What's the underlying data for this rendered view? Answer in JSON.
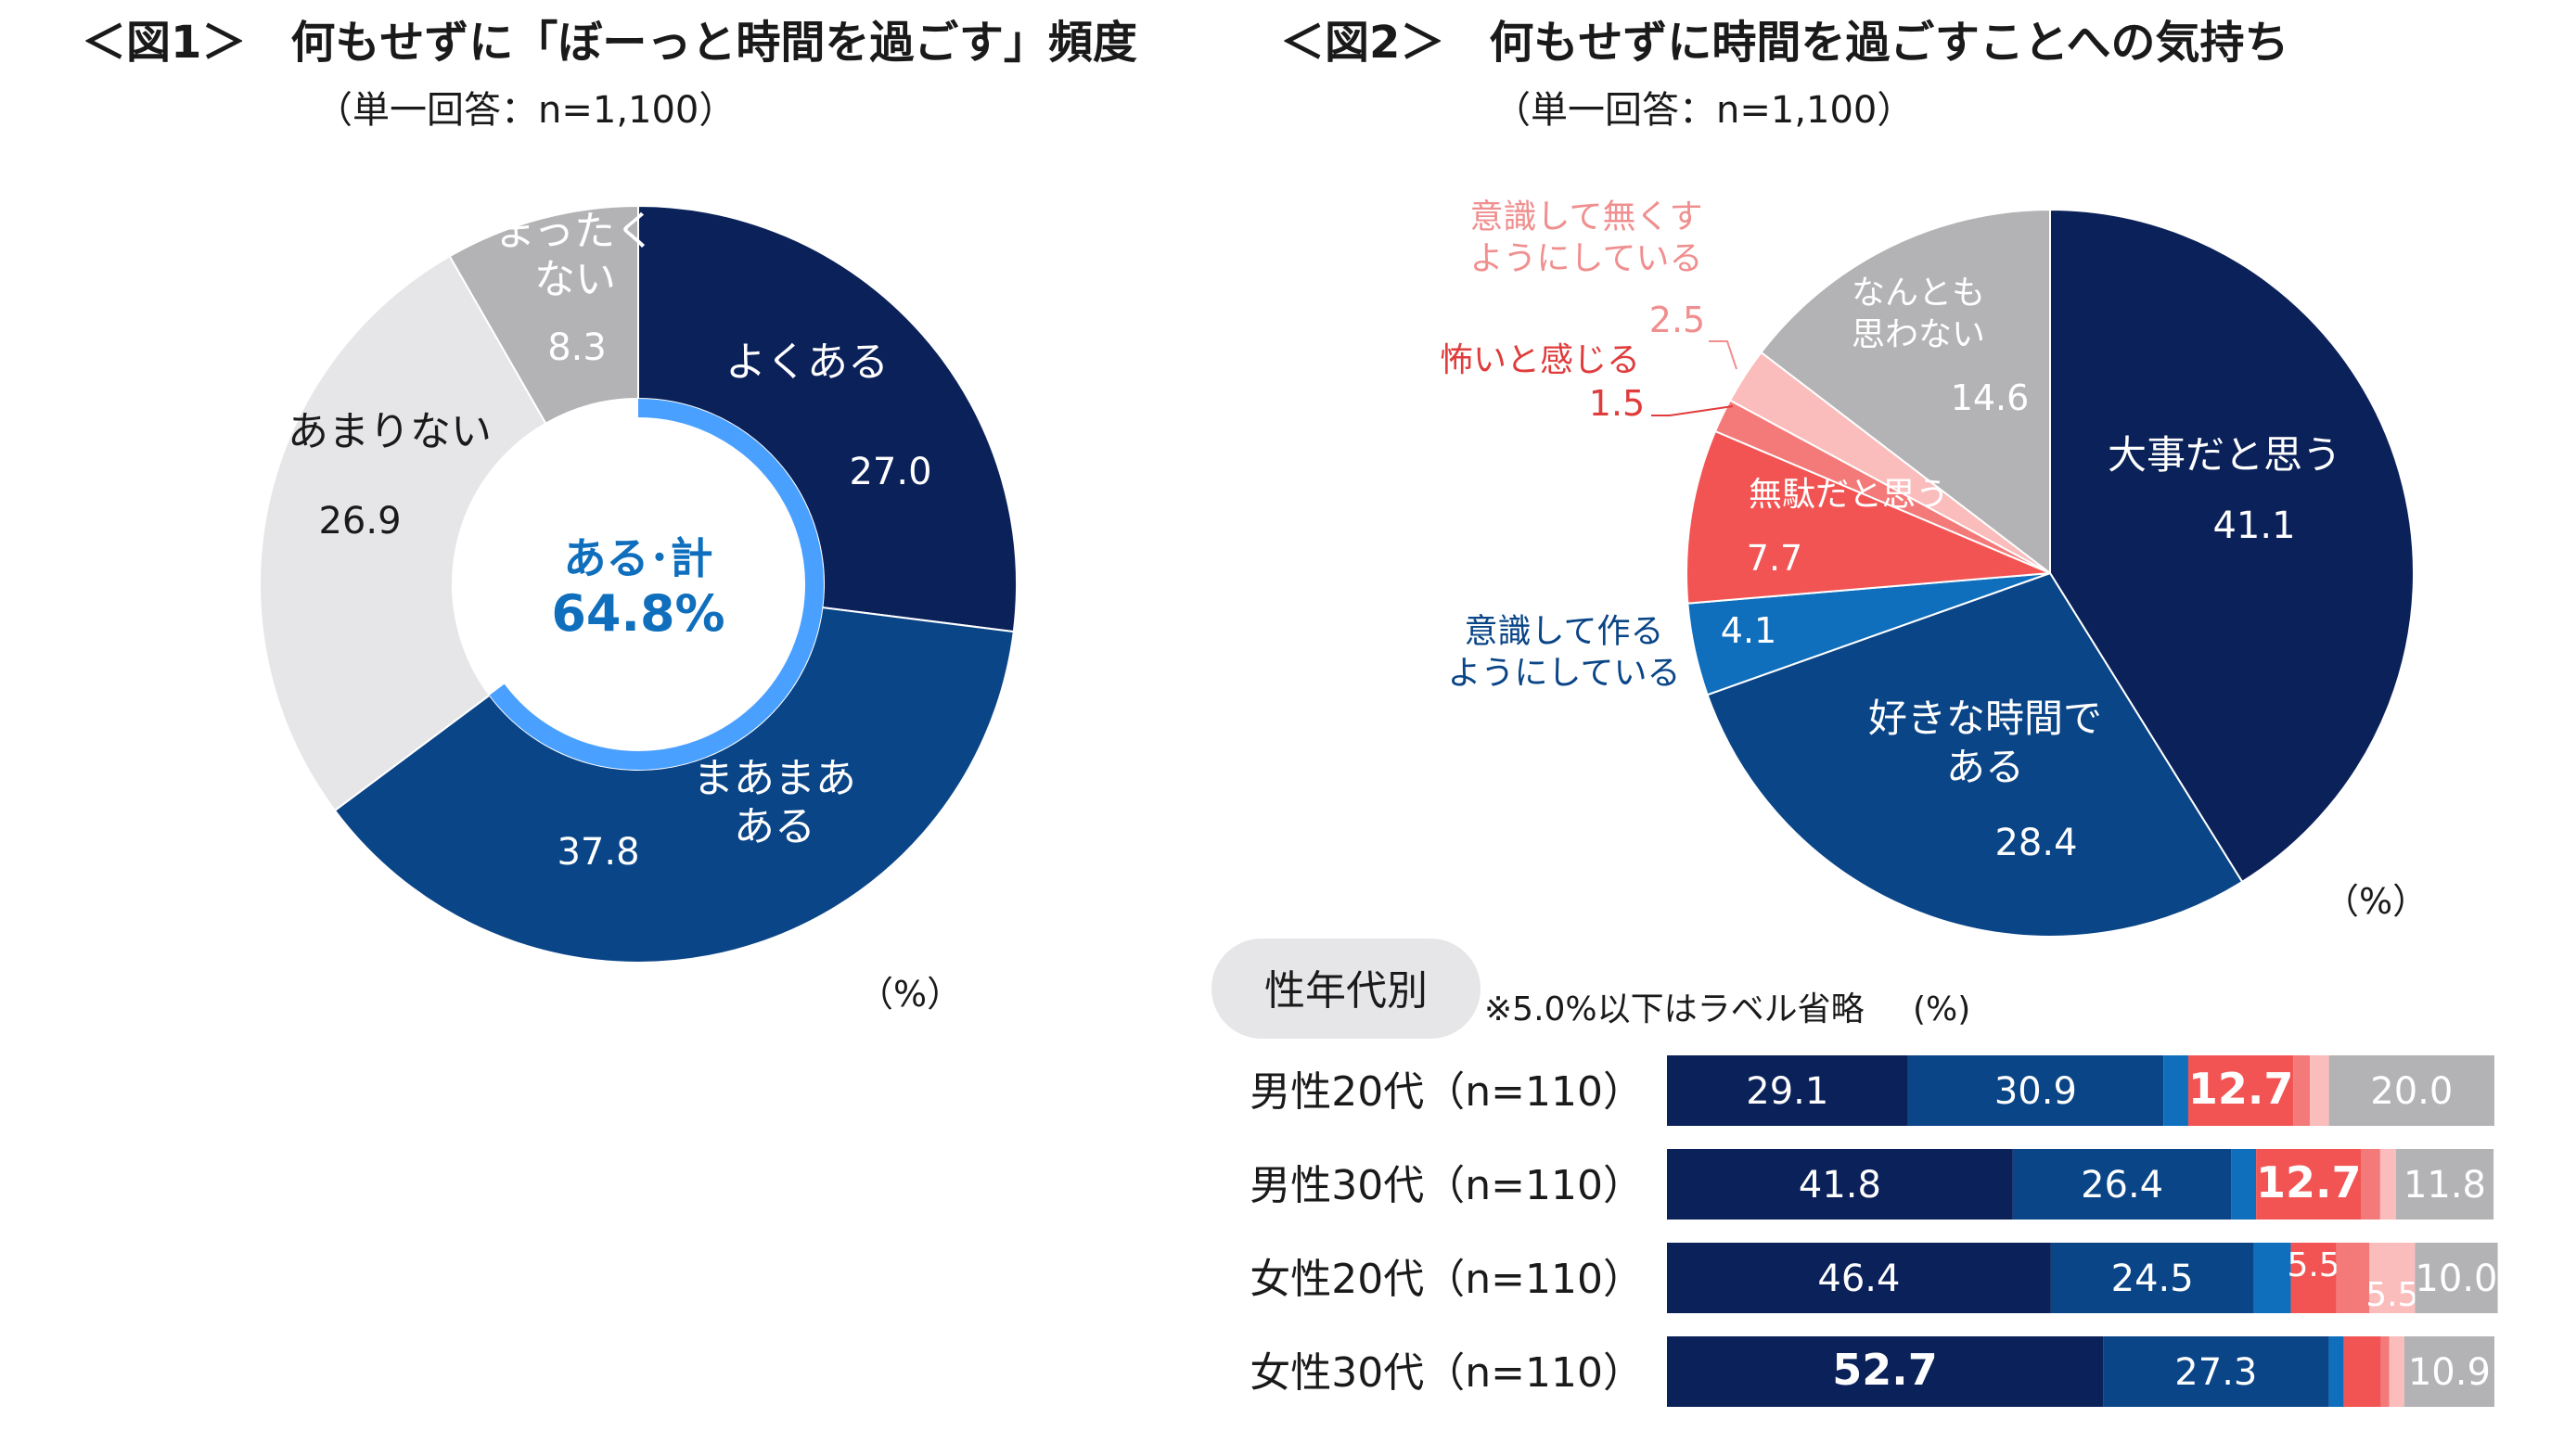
{
  "fig1": {
    "title": "＜図1＞　何もせずに「ぼーっと時間を過ごす」頻度",
    "subtitle": "（単一回答：n=1,100）",
    "center_label": "ある･計",
    "center_value": "64.8%",
    "unit": "（%）"
  },
  "fig2": {
    "title": "＜図2＞　何もせずに時間を過ごすことへの気持ち",
    "subtitle": "（単一回答：n=1,100）",
    "unit": "（%）"
  },
  "bar_section": {
    "badge": "性年代別",
    "note": "※5.0%以下はラベル省略",
    "unit": "(%)"
  },
  "chart_data": [
    {
      "type": "pie",
      "variant": "donut",
      "title": "何もせずに「ぼーっと時間を過ごす」頻度",
      "categories": [
        "よくある",
        "まあまあある",
        "あまりない",
        "まったくない"
      ],
      "display_labels": [
        "よくある",
        "まあまあ\nある",
        "あまりない",
        "まったく\nない"
      ],
      "values": [
        27.0,
        37.8,
        26.9,
        8.3
      ],
      "value_labels": [
        "27.0",
        "37.8",
        "26.9",
        "8.3"
      ],
      "colors": [
        "#0b2159",
        "#0a4587",
        "#e6e6e8",
        "#b3b3b5"
      ],
      "label_colors": [
        "#ffffff",
        "#ffffff",
        "#1a1a1a",
        "#ffffff"
      ]
    },
    {
      "type": "pie",
      "title": "何もせずに時間を過ごすことへの気持ち",
      "categories": [
        "大事だと思う",
        "好きな時間である",
        "意識して作るようにしている",
        "無駄だと思う",
        "怖いと感じる",
        "意識して無くすようにしている",
        "なんとも思わない"
      ],
      "display_labels": [
        "大事だと思う",
        "好きな時間で\nある",
        "意識して作る\nようにしている",
        "無駄だと思う",
        "怖いと感じる",
        "意識して無くす\nようにしている",
        "なんとも\n思わない"
      ],
      "values": [
        41.1,
        28.4,
        4.1,
        7.7,
        1.5,
        2.5,
        14.6
      ],
      "value_labels": [
        "41.1",
        "28.4",
        "4.1",
        "7.7",
        "1.5",
        "2.5",
        "14.6"
      ],
      "colors": [
        "#0b2159",
        "#0a4587",
        "#0f6fbd",
        "#f25454",
        "#f47a7a",
        "#fbbcbc",
        "#b3b3b5"
      ]
    },
    {
      "type": "bar",
      "orientation": "horizontal",
      "stacked": true,
      "categories": [
        "男性20代（n=110）",
        "男性30代（n=110）",
        "女性20代（n=110）",
        "女性30代（n=110）"
      ],
      "series": [
        {
          "name": "大事だと思う",
          "color": "#0b2159",
          "values": [
            29.1,
            41.8,
            46.4,
            52.7
          ],
          "labels": [
            "29.1",
            "41.8",
            "46.4",
            "52.7"
          ]
        },
        {
          "name": "好きな時間である",
          "color": "#0a4587",
          "values": [
            30.9,
            26.4,
            24.5,
            27.3
          ],
          "labels": [
            "30.9",
            "26.4",
            "24.5",
            "27.3"
          ]
        },
        {
          "name": "意識して作るようにしている",
          "color": "#0f6fbd",
          "values": [
            3.0,
            3.0,
            4.5,
            1.8
          ],
          "labels": [
            "",
            "",
            "",
            ""
          ]
        },
        {
          "name": "無駄だと思う",
          "color": "#f25454",
          "values": [
            12.7,
            12.7,
            5.5,
            4.5
          ],
          "labels": [
            "12.7",
            "12.7",
            "5.5",
            ""
          ]
        },
        {
          "name": "怖いと感じる",
          "color": "#f47a7a",
          "values": [
            2.0,
            2.3,
            4.0,
            1.0
          ],
          "labels": [
            "",
            "",
            "",
            ""
          ]
        },
        {
          "name": "意識して無くすようにしている",
          "color": "#fbbcbc",
          "values": [
            2.3,
            1.9,
            5.5,
            1.8
          ],
          "labels": [
            "",
            "",
            "5.5",
            ""
          ]
        },
        {
          "name": "なんとも思わない",
          "color": "#b3b3b5",
          "values": [
            20.0,
            11.8,
            10.0,
            10.9
          ],
          "labels": [
            "20.0",
            "11.8",
            "10.0",
            "10.9"
          ]
        }
      ],
      "xlim": [
        0,
        100
      ]
    }
  ]
}
